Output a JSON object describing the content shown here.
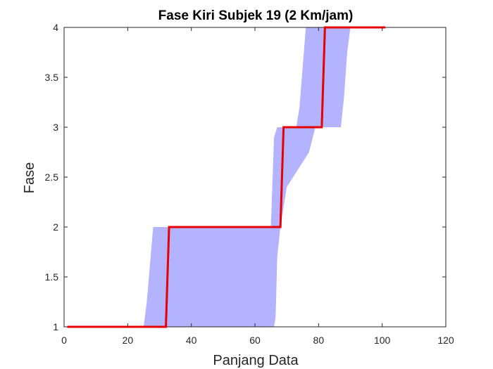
{
  "chart_data": {
    "type": "line",
    "title": "Fase Kiri Subjek 19 (2 Km/jam)",
    "xlabel": "Panjang Data",
    "ylabel": "Fase",
    "xlim": [
      0,
      120
    ],
    "ylim": [
      1,
      4
    ],
    "xticks": [
      0,
      20,
      40,
      60,
      80,
      100,
      120
    ],
    "yticks": [
      1,
      1.5,
      2,
      2.5,
      3,
      3.5,
      4
    ],
    "grid": false,
    "colors": {
      "band": "#b3b3ff",
      "line": "#e60000",
      "axis": "#262626"
    },
    "band": {
      "upper": [
        [
          1,
          1
        ],
        [
          25,
          1
        ],
        [
          26,
          1.25
        ],
        [
          28,
          2
        ],
        [
          65,
          2
        ],
        [
          66,
          2.9
        ],
        [
          67,
          3
        ],
        [
          73,
          3
        ],
        [
          74,
          3.2
        ],
        [
          75,
          3.6
        ],
        [
          76,
          4
        ],
        [
          101,
          4
        ]
      ],
      "lower": [
        [
          101,
          4
        ],
        [
          90,
          4
        ],
        [
          89,
          3.75
        ],
        [
          88,
          3.3
        ],
        [
          87,
          3
        ],
        [
          79,
          3
        ],
        [
          77,
          2.75
        ],
        [
          70,
          2.4
        ],
        [
          68,
          2
        ],
        [
          67,
          1.7
        ],
        [
          66.5,
          1.1
        ],
        [
          66,
          1
        ],
        [
          1,
          1
        ]
      ]
    },
    "series": [
      {
        "x": [
          1,
          32,
          33,
          68,
          69,
          81,
          82,
          101
        ],
        "y": [
          1,
          1,
          2,
          2,
          3,
          3,
          4,
          4
        ]
      }
    ]
  }
}
